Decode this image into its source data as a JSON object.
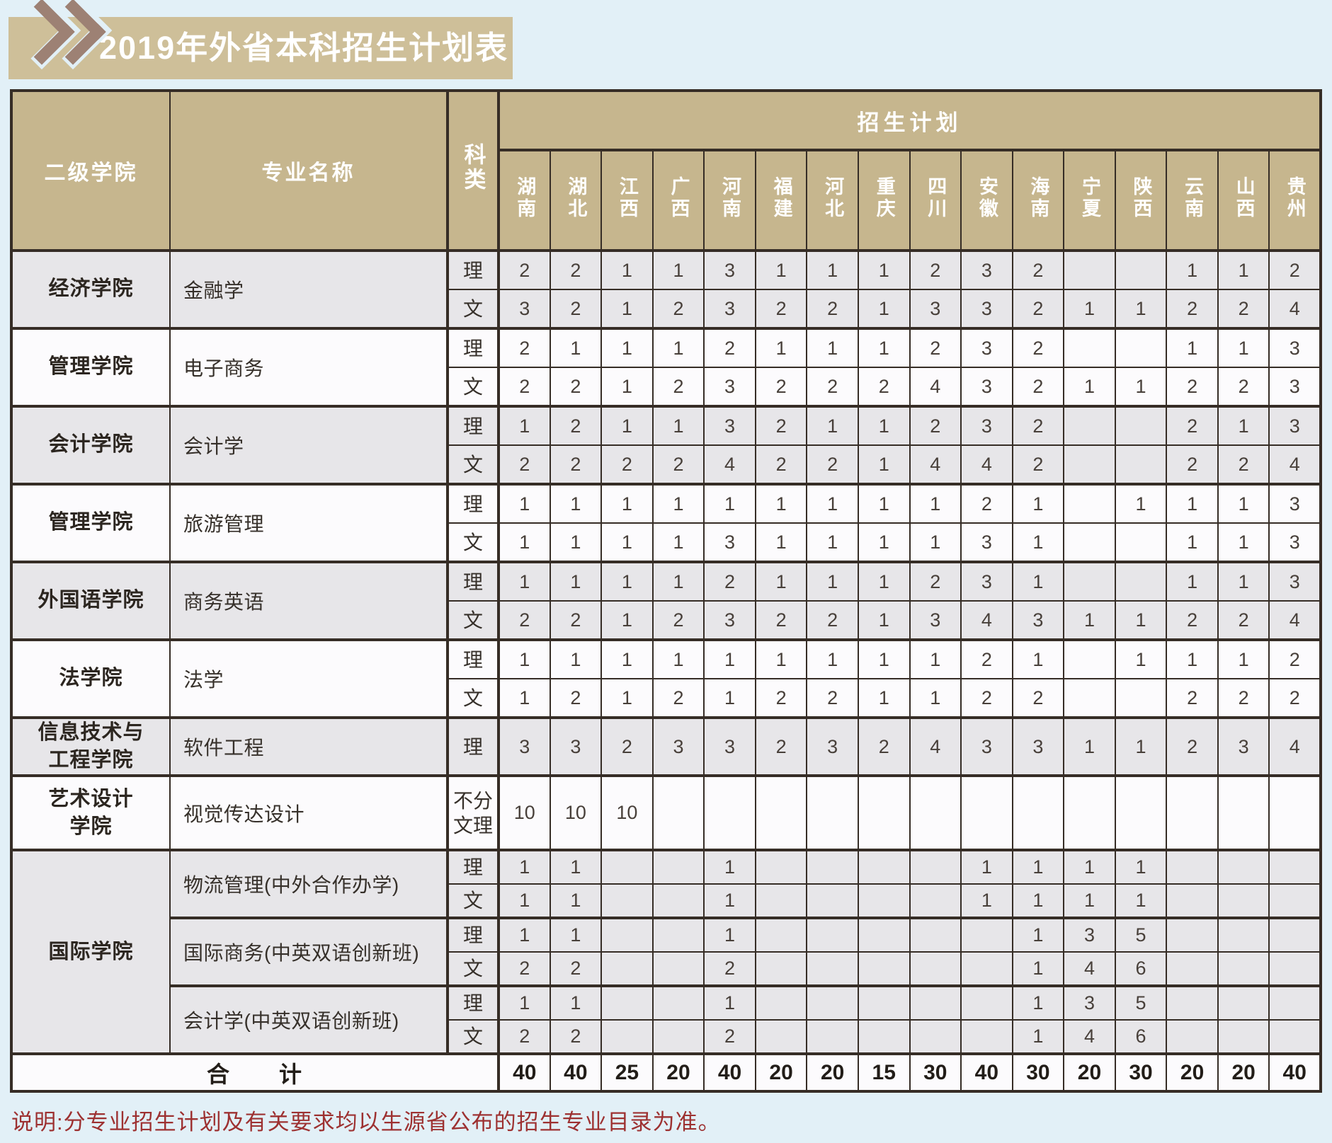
{
  "title": "2019年外省本科招生计划表",
  "header": {
    "college": "二级学院",
    "major": "专业名称",
    "subject": "科类",
    "plan": "招生计划",
    "provinces": [
      "湖南",
      "湖北",
      "江西",
      "广西",
      "河南",
      "福建",
      "河北",
      "重庆",
      "四川",
      "安徽",
      "海南",
      "宁夏",
      "陕西",
      "云南",
      "山西",
      "贵州"
    ]
  },
  "groups": [
    {
      "college": "经济学院",
      "bg": "grey",
      "majors": [
        {
          "name": "金融学",
          "size": "normal",
          "rows": [
            {
              "subject": "理",
              "values": [
                "2",
                "2",
                "1",
                "1",
                "3",
                "1",
                "1",
                "1",
                "2",
                "3",
                "2",
                "",
                "",
                "1",
                "1",
                "2"
              ]
            },
            {
              "subject": "文",
              "values": [
                "3",
                "2",
                "1",
                "2",
                "3",
                "2",
                "2",
                "1",
                "3",
                "3",
                "2",
                "1",
                "1",
                "2",
                "2",
                "4"
              ]
            }
          ]
        }
      ]
    },
    {
      "college": "管理学院",
      "bg": "white",
      "majors": [
        {
          "name": "电子商务",
          "size": "normal",
          "rows": [
            {
              "subject": "理",
              "values": [
                "2",
                "1",
                "1",
                "1",
                "2",
                "1",
                "1",
                "1",
                "2",
                "3",
                "2",
                "",
                "",
                "1",
                "1",
                "3"
              ]
            },
            {
              "subject": "文",
              "values": [
                "2",
                "2",
                "1",
                "2",
                "3",
                "2",
                "2",
                "2",
                "4",
                "3",
                "2",
                "1",
                "1",
                "2",
                "2",
                "3"
              ]
            }
          ]
        }
      ]
    },
    {
      "college": "会计学院",
      "bg": "grey",
      "majors": [
        {
          "name": "会计学",
          "size": "normal",
          "rows": [
            {
              "subject": "理",
              "values": [
                "1",
                "2",
                "1",
                "1",
                "3",
                "2",
                "1",
                "1",
                "2",
                "3",
                "2",
                "",
                "",
                "2",
                "1",
                "3"
              ]
            },
            {
              "subject": "文",
              "values": [
                "2",
                "2",
                "2",
                "2",
                "4",
                "2",
                "2",
                "1",
                "4",
                "4",
                "2",
                "",
                "",
                "2",
                "2",
                "4"
              ]
            }
          ]
        }
      ]
    },
    {
      "college": "管理学院",
      "bg": "white",
      "majors": [
        {
          "name": "旅游管理",
          "size": "normal",
          "rows": [
            {
              "subject": "理",
              "values": [
                "1",
                "1",
                "1",
                "1",
                "1",
                "1",
                "1",
                "1",
                "1",
                "2",
                "1",
                "",
                "1",
                "1",
                "1",
                "3"
              ]
            },
            {
              "subject": "文",
              "values": [
                "1",
                "1",
                "1",
                "1",
                "3",
                "1",
                "1",
                "1",
                "1",
                "3",
                "1",
                "",
                "",
                "1",
                "1",
                "3"
              ]
            }
          ]
        }
      ]
    },
    {
      "college": "外国语学院",
      "bg": "grey",
      "majors": [
        {
          "name": "商务英语",
          "size": "normal",
          "rows": [
            {
              "subject": "理",
              "values": [
                "1",
                "1",
                "1",
                "1",
                "2",
                "1",
                "1",
                "1",
                "2",
                "3",
                "1",
                "",
                "",
                "1",
                "1",
                "3"
              ]
            },
            {
              "subject": "文",
              "values": [
                "2",
                "2",
                "1",
                "2",
                "3",
                "2",
                "2",
                "1",
                "3",
                "4",
                "3",
                "1",
                "1",
                "2",
                "2",
                "4"
              ]
            }
          ]
        }
      ]
    },
    {
      "college": "法学院",
      "bg": "white",
      "majors": [
        {
          "name": "法学",
          "size": "normal",
          "rows": [
            {
              "subject": "理",
              "values": [
                "1",
                "1",
                "1",
                "1",
                "1",
                "1",
                "1",
                "1",
                "1",
                "2",
                "1",
                "",
                "1",
                "1",
                "1",
                "2"
              ]
            },
            {
              "subject": "文",
              "values": [
                "1",
                "2",
                "1",
                "2",
                "1",
                "2",
                "2",
                "1",
                "1",
                "2",
                "2",
                "",
                "",
                "2",
                "2",
                "2"
              ]
            }
          ]
        }
      ]
    },
    {
      "college": "信息技术与\n工程学院",
      "bg": "grey",
      "majors": [
        {
          "name": "软件工程",
          "size": "tall",
          "rows": [
            {
              "subject": "理",
              "values": [
                "3",
                "3",
                "2",
                "3",
                "3",
                "2",
                "3",
                "2",
                "4",
                "3",
                "3",
                "1",
                "1",
                "2",
                "3",
                "4"
              ]
            }
          ]
        }
      ]
    },
    {
      "college": "艺术设计\n学院",
      "bg": "white",
      "majors": [
        {
          "name": "视觉传达设计",
          "size": "xtall",
          "rows": [
            {
              "subject": "不分\n文理",
              "values": [
                "10",
                "10",
                "10",
                "",
                "",
                "",
                "",
                "",
                "",
                "",
                "",
                "",
                "",
                "",
                "",
                ""
              ]
            }
          ]
        }
      ]
    },
    {
      "college": "国际学院",
      "bg": "grey",
      "majors": [
        {
          "name": "物流管理(中外合作办学)",
          "size": "intl",
          "rows": [
            {
              "subject": "理",
              "values": [
                "1",
                "1",
                "",
                "",
                "1",
                "",
                "",
                "",
                "",
                "1",
                "1",
                "1",
                "1",
                "",
                "",
                ""
              ]
            },
            {
              "subject": "文",
              "values": [
                "1",
                "1",
                "",
                "",
                "1",
                "",
                "",
                "",
                "",
                "1",
                "1",
                "1",
                "1",
                "",
                "",
                ""
              ]
            }
          ]
        },
        {
          "name": "国际商务(中英双语创新班)",
          "size": "intl",
          "rows": [
            {
              "subject": "理",
              "values": [
                "1",
                "1",
                "",
                "",
                "1",
                "",
                "",
                "",
                "",
                "",
                "1",
                "3",
                "5",
                "",
                "",
                ""
              ]
            },
            {
              "subject": "文",
              "values": [
                "2",
                "2",
                "",
                "",
                "2",
                "",
                "",
                "",
                "",
                "",
                "1",
                "4",
                "6",
                "",
                "",
                ""
              ]
            }
          ]
        },
        {
          "name": "会计学(中英双语创新班)",
          "size": "intl",
          "rows": [
            {
              "subject": "理",
              "values": [
                "1",
                "1",
                "",
                "",
                "1",
                "",
                "",
                "",
                "",
                "",
                "1",
                "3",
                "5",
                "",
                "",
                ""
              ]
            },
            {
              "subject": "文",
              "values": [
                "2",
                "2",
                "",
                "",
                "2",
                "",
                "",
                "",
                "",
                "",
                "1",
                "4",
                "6",
                "",
                "",
                ""
              ]
            }
          ]
        }
      ]
    }
  ],
  "total": {
    "label": "合　　计",
    "values": [
      "40",
      "40",
      "25",
      "20",
      "40",
      "20",
      "20",
      "15",
      "30",
      "40",
      "30",
      "20",
      "30",
      "20",
      "20",
      "40"
    ]
  },
  "note": "说明:分专业招生计划及有关要求均以生源省公布的招生专业目录为准。"
}
